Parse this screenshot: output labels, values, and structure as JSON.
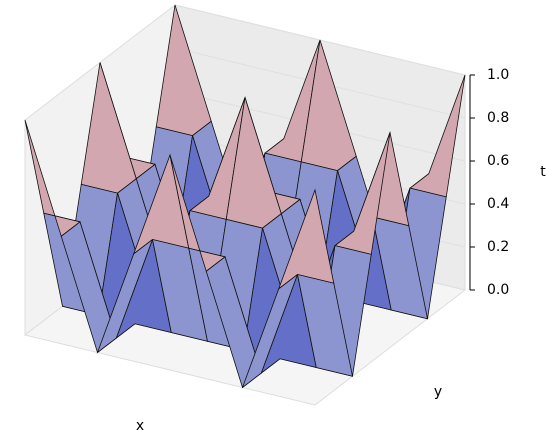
{
  "chart_data": {
    "type": "surface",
    "xlabel": "x",
    "ylabel": "y",
    "zlabel": "t",
    "colormap": "coolwarm",
    "z": [
      [
        1,
        0.5,
        0,
        0.5,
        1,
        0.5,
        0,
        0.5,
        1
      ],
      [
        0.5,
        0.5,
        0,
        0.5,
        0.5,
        0.5,
        0,
        0.5,
        0.5
      ],
      [
        0,
        0,
        0,
        0,
        0,
        0,
        0,
        0,
        0
      ],
      [
        0.5,
        0.5,
        0,
        0.5,
        0.5,
        0.5,
        0,
        0.5,
        0.5
      ],
      [
        1,
        0.5,
        0,
        0.5,
        1,
        0.5,
        0,
        0.5,
        1
      ],
      [
        0.5,
        0.5,
        0,
        0.5,
        0.5,
        0.5,
        0,
        0.5,
        0.5
      ],
      [
        0,
        0,
        0,
        0,
        0,
        0,
        0,
        0,
        0
      ],
      [
        0.5,
        0.5,
        0,
        0.5,
        0.5,
        0.5,
        0,
        0.5,
        0.5
      ],
      [
        1,
        0.5,
        0,
        0.5,
        1,
        0.5,
        0,
        0.5,
        1
      ]
    ],
    "zlim": [
      0,
      1
    ],
    "zticks": [
      {
        "value": 0,
        "label": "0.0"
      },
      {
        "value": 0.2,
        "label": "0.2"
      },
      {
        "value": 0.4,
        "label": "0.4"
      },
      {
        "value": 0.6,
        "label": "0.6"
      },
      {
        "value": 0.8,
        "label": "0.8"
      },
      {
        "value": 1,
        "label": "1.0"
      }
    ]
  }
}
